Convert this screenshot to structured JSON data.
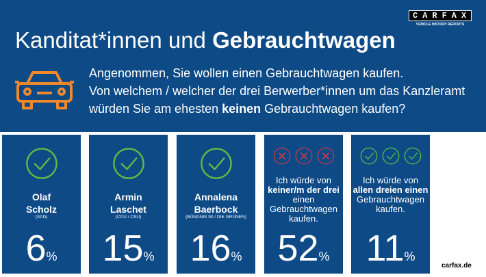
{
  "title": {
    "regular": "Kanditat*innen und ",
    "bold": "Gebrauchtwagen"
  },
  "question": {
    "line1": "Angenommen, Sie wollen einen Gebrauchtwagen kaufen.",
    "line2": "Von welchem / welcher der drei Berwerber*innen um das Kanzleramt",
    "line3_pre": "würden Sie am ehesten ",
    "line3_bold": "keinen",
    "line3_post": " Gebrauchtwagen kaufen?"
  },
  "logo": {
    "text": "CARFAX",
    "tagline": "VEHICLE HISTORY REPORTS",
    "reg": "®"
  },
  "colors": {
    "blue": "#0d4a86",
    "green": "#5dbb46",
    "red": "#c0394b",
    "orange": "#f0892b"
  },
  "cards": [
    {
      "first": "Olaf",
      "last": "Scholz",
      "party": "(SPD)",
      "value": "6",
      "unit": "%"
    },
    {
      "first": "Armin",
      "last": "Laschet",
      "party": "(CDU / CSU)",
      "value": "15",
      "unit": "%"
    },
    {
      "first": "Annalena",
      "last": "Baerbock",
      "party": "(BÜNDNIS 90 / DIE GRÜNEN)",
      "value": "16",
      "unit": "%"
    },
    {
      "pre": "Ich würde von",
      "bold": "keiner/m der drei",
      "post": " einen Gebrauchtwagen kaufen.",
      "value": "52",
      "unit": "%"
    },
    {
      "pre": "Ich würde von",
      "bold": "allen dreien einen",
      "post": "Gebrauchtwagen kaufen.",
      "value": "11",
      "unit": "%"
    }
  ],
  "footer": "carfax.de"
}
